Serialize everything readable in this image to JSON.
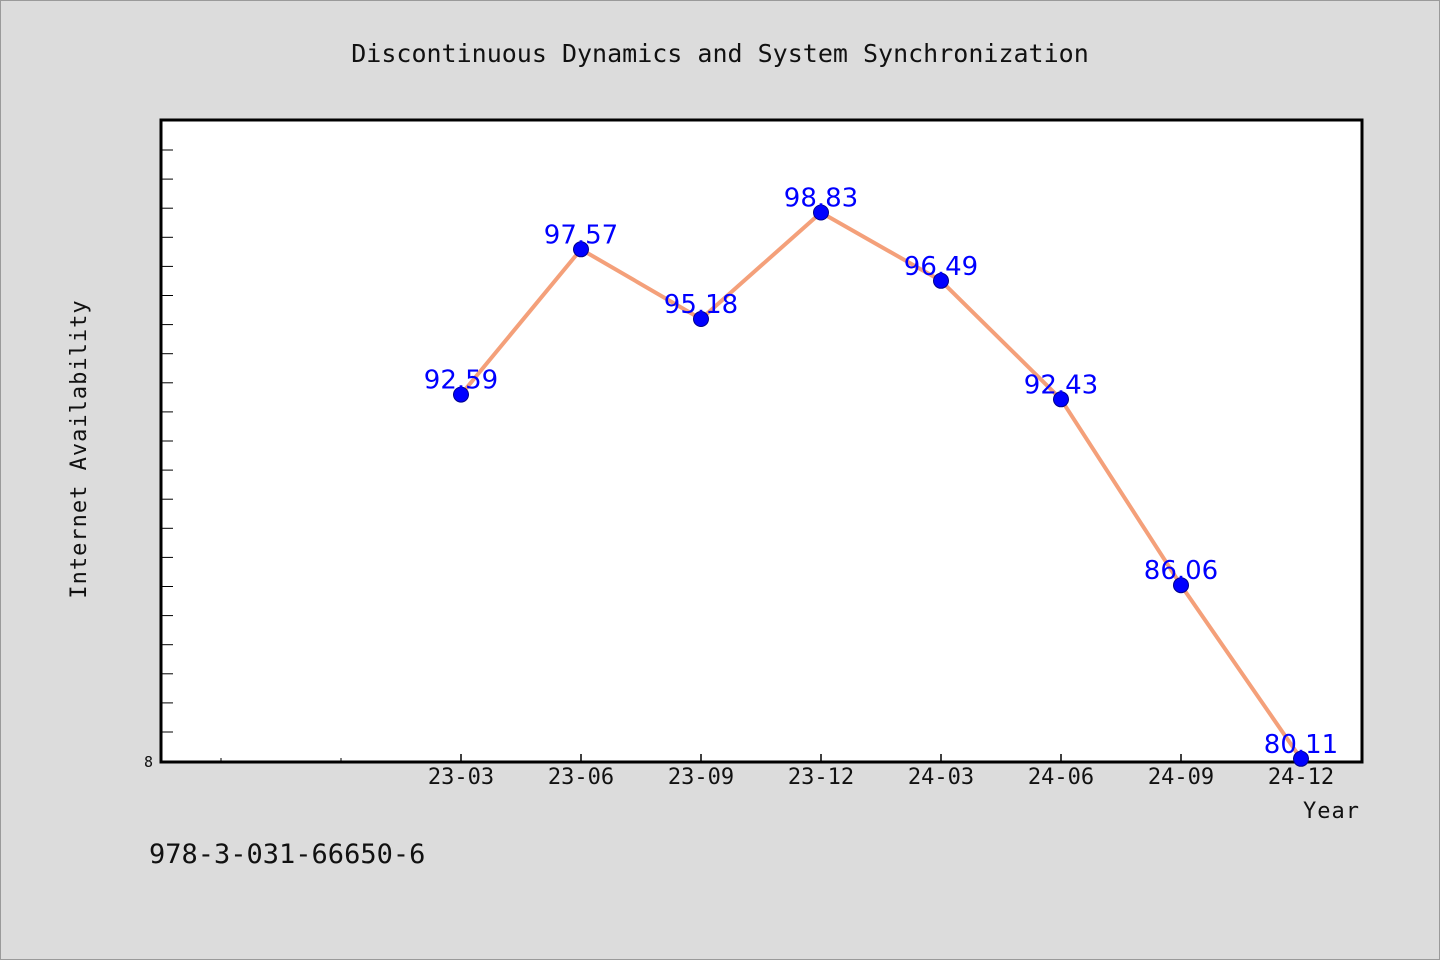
{
  "chart_data": {
    "type": "line",
    "title": "Discontinuous Dynamics and System Synchronization",
    "xlabel": "Year",
    "ylabel": "Internet Availability",
    "categories": [
      "23-03",
      "23-06",
      "23-09",
      "23-12",
      "24-03",
      "24-06",
      "24-09",
      "24-12"
    ],
    "values": [
      92.59,
      97.57,
      95.18,
      98.83,
      96.49,
      92.43,
      86.06,
      80.11
    ],
    "data_labels": [
      "92.59",
      "97.57",
      "95.18",
      "98.83",
      "96.49",
      "92.43",
      "86.06",
      "80.11"
    ],
    "y_tick_labels": [
      "8"
    ],
    "ylim": [
      80,
      102
    ],
    "grid": false,
    "line_color": "#f4a07a",
    "marker_color": "#0000ff",
    "label_color": "#0000ff"
  },
  "footer": {
    "isbn": "978-3-031-66650-6"
  }
}
